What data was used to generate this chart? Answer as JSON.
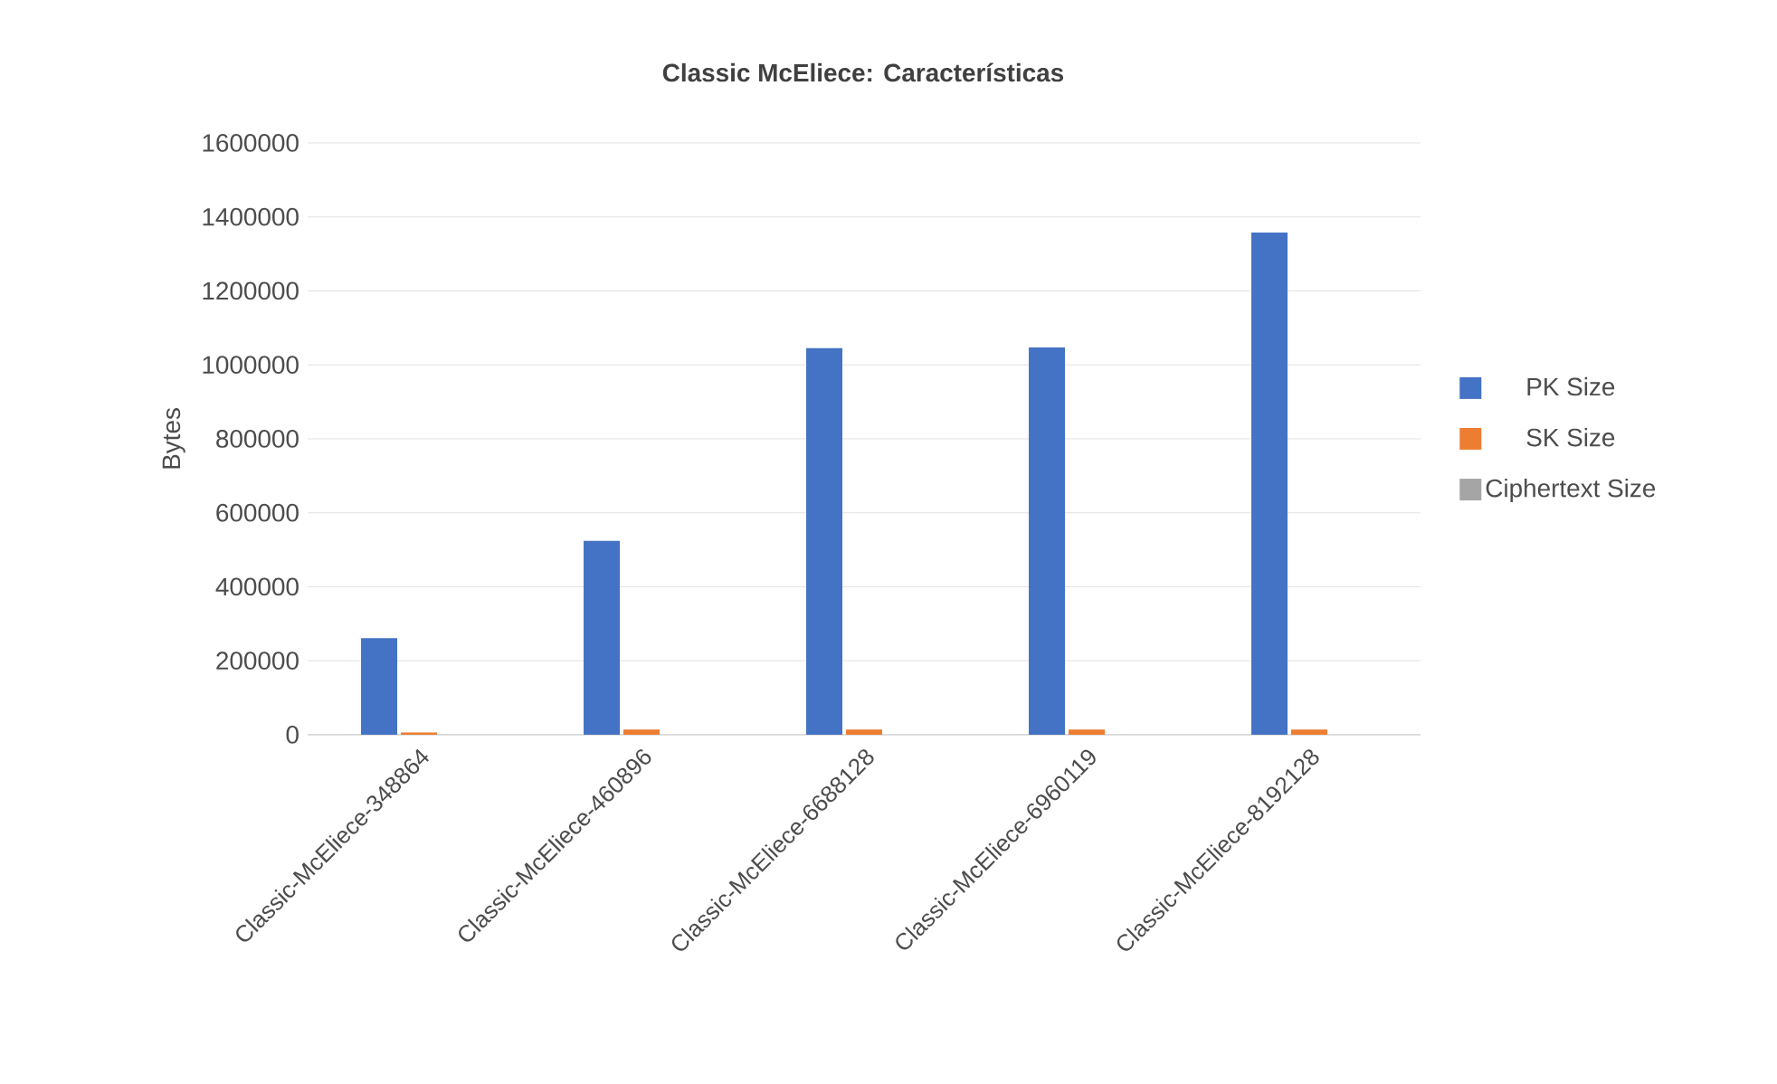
{
  "chart_data": {
    "type": "bar",
    "title": "**Classic McEliece: Características**",
    "ylabel": "Bytes",
    "categories": [
      "Classic-McEliece-348864",
      "Classic-McEliece-460896",
      "Classic-McEliece-6688128",
      "Classic-McEliece-6960119",
      "Classic-McEliece-8192128"
    ],
    "series": [
      {
        "name": "PK Size",
        "color": "#4472c4",
        "values": [
          261000,
          524000,
          1045000,
          1047000,
          1358000
        ]
      },
      {
        "name": "SK Size",
        "color": "#ed7d31",
        "values": [
          6000,
          14000,
          14000,
          14000,
          14000
        ]
      },
      {
        "name": "Ciphertext Size",
        "color": "#a5a5a5",
        "values": [
          0,
          0,
          0,
          0,
          0
        ]
      }
    ],
    "ylim": [
      0,
      1600000
    ],
    "yticks": [
      0,
      200000,
      400000,
      600000,
      800000,
      1000000,
      1200000,
      1400000,
      1600000
    ],
    "grid": "y",
    "legend": "right"
  }
}
